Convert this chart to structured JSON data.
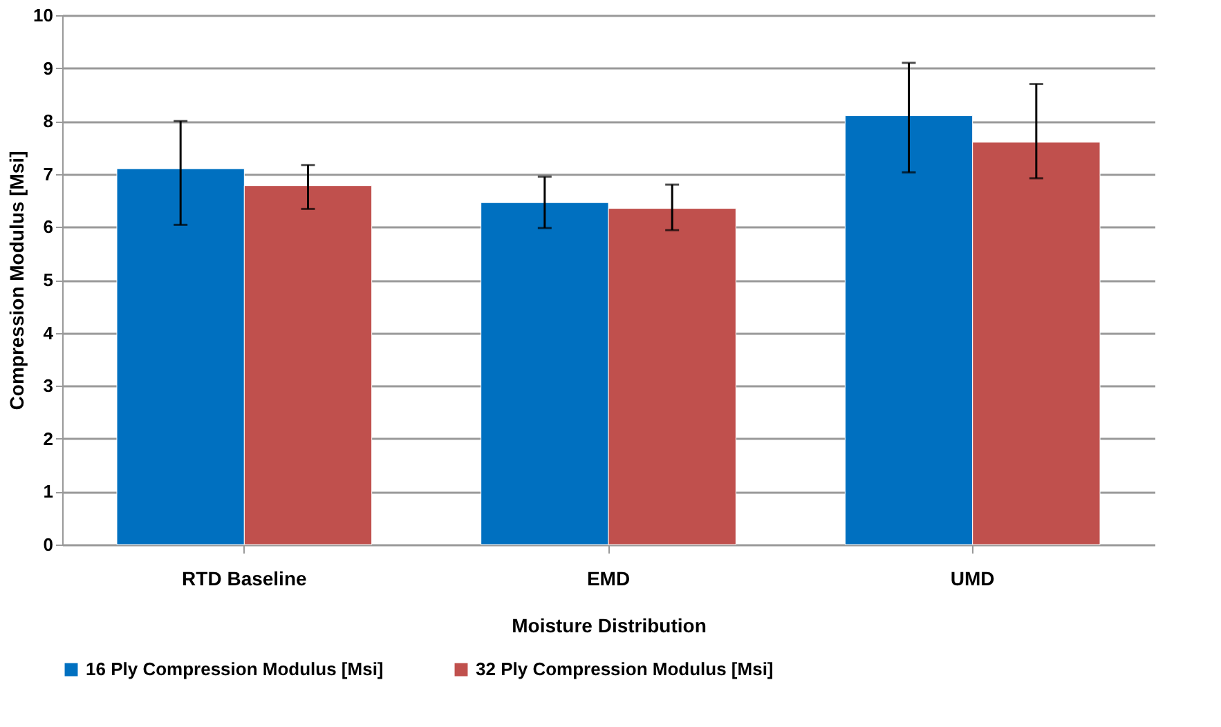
{
  "chart_data": {
    "type": "bar",
    "xlabel": "Moisture Distribution",
    "ylabel": "Compression Modulus  [Msi]",
    "categories": [
      "RTD Baseline",
      "EMD",
      "UMD"
    ],
    "series": [
      {
        "name": "16 Ply Compression  Modulus  [Msi]",
        "color": "#0070c0",
        "values": [
          7.1,
          6.46,
          8.1
        ],
        "errors": [
          [
            6.04,
            8.0
          ],
          [
            5.98,
            6.95
          ],
          [
            7.03,
            9.1
          ]
        ]
      },
      {
        "name": "32 Ply Compression  Modulus  [Msi]",
        "color": "#c0504d",
        "values": [
          6.78,
          6.35,
          7.6
        ],
        "errors": [
          [
            6.34,
            7.17
          ],
          [
            5.94,
            6.8
          ],
          [
            6.92,
            8.7
          ]
        ]
      }
    ],
    "ylim": [
      0,
      10
    ],
    "yticks": [
      0,
      1,
      2,
      3,
      4,
      5,
      6,
      7,
      8,
      9,
      10
    ],
    "grid": "y",
    "legend": "bottom"
  }
}
